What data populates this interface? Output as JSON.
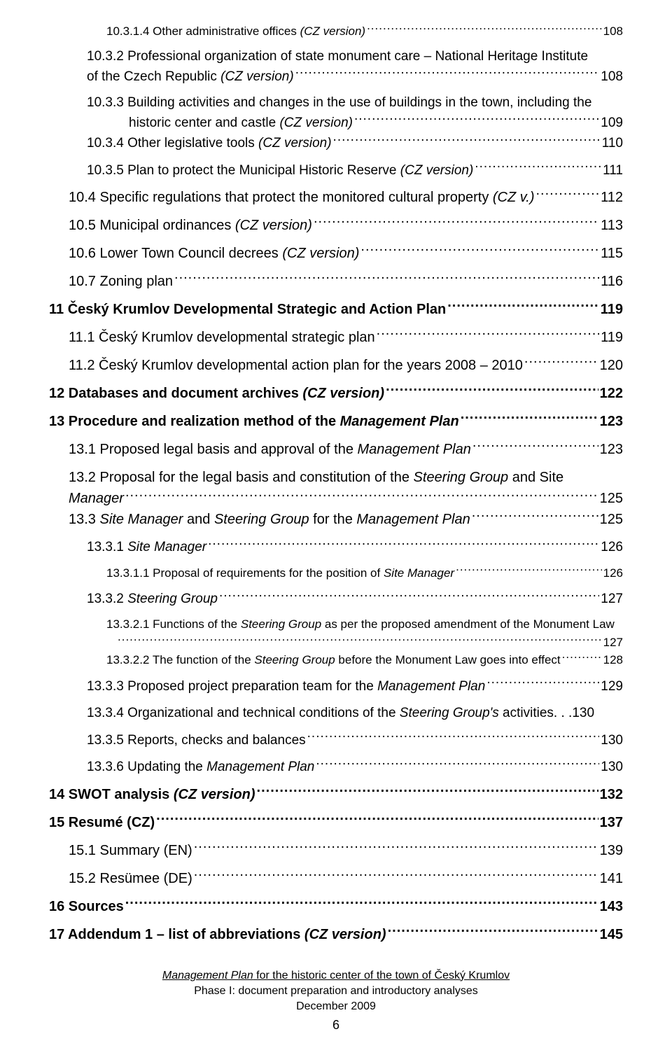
{
  "entries": [
    {
      "level": 3,
      "parts": [
        {
          "t": "10.3.1.4 Other administrative offices "
        },
        {
          "t": "(CZ version)",
          "i": true
        }
      ],
      "page": "108"
    },
    {
      "level": 2,
      "wrap": true,
      "line1": [
        {
          "t": "10.3.2 Professional organization of state monument care – National Heritage Institute"
        }
      ],
      "line2": [
        {
          "t": "of the Czech Republic "
        },
        {
          "t": "(CZ version)",
          "i": true
        }
      ],
      "page": "108"
    },
    {
      "level": 2,
      "wrap": true,
      "line1": [
        {
          "t": "10.3.3 Building activities and changes in the use of buildings in the town, including the"
        }
      ],
      "line2_indent": 60,
      "line2": [
        {
          "t": "historic center and castle "
        },
        {
          "t": "(CZ version)",
          "i": true
        }
      ],
      "page": "109"
    },
    {
      "level": 2,
      "parts": [
        {
          "t": "10.3.4 Other legislative tools "
        },
        {
          "t": "(CZ version)",
          "i": true
        }
      ],
      "page": "110"
    },
    {
      "level": 2,
      "parts": [
        {
          "t": "10.3.5 Plan to protect the Municipal Historic Reserve "
        },
        {
          "t": "(CZ version)",
          "i": true
        }
      ],
      "page": "111"
    },
    {
      "level": 1,
      "parts": [
        {
          "t": "10.4 Specific regulations that protect the monitored cultural property "
        },
        {
          "t": "(CZ v.)",
          "i": true
        }
      ],
      "page": "112"
    },
    {
      "level": 1,
      "parts": [
        {
          "t": "10.5 Municipal ordinances "
        },
        {
          "t": "(CZ version)",
          "i": true
        }
      ],
      "page": "113"
    },
    {
      "level": 1,
      "parts": [
        {
          "t": "10.6 Lower Town Council decrees "
        },
        {
          "t": "(CZ version)",
          "i": true
        }
      ],
      "page": "115"
    },
    {
      "level": 1,
      "parts": [
        {
          "t": "10.7 Zoning plan"
        }
      ],
      "page": "116"
    },
    {
      "level": 0,
      "parts": [
        {
          "t": "11 Český Krumlov Developmental Strategic and Action Plan"
        }
      ],
      "page": "119"
    },
    {
      "level": 1,
      "parts": [
        {
          "t": "11.1 Český Krumlov developmental strategic plan "
        }
      ],
      "page": "119"
    },
    {
      "level": 1,
      "parts": [
        {
          "t": "11.2 Český Krumlov developmental action plan for the years 2008 – 2010 "
        }
      ],
      "page": "120"
    },
    {
      "level": 0,
      "parts": [
        {
          "t": "12 Databases and document archives "
        },
        {
          "t": "(CZ version)",
          "i": true
        }
      ],
      "page": "122"
    },
    {
      "level": 0,
      "parts": [
        {
          "t": "13 Procedure and realization method of the "
        },
        {
          "t": "Management Plan",
          "i": true
        }
      ],
      "page": "123"
    },
    {
      "level": 1,
      "parts": [
        {
          "t": "13.1 Proposed legal basis and approval of the "
        },
        {
          "t": "Management Plan",
          "i": true
        }
      ],
      "page": "123"
    },
    {
      "level": 1,
      "wrap": true,
      "line1": [
        {
          "t": "13.2 Proposal for the legal basis and constitution of the "
        },
        {
          "t": "Steering Group",
          "i": true
        },
        {
          "t": " and Site"
        }
      ],
      "line2": [
        {
          "t": "Manager",
          "i": true
        }
      ],
      "page": "125"
    },
    {
      "level": 1,
      "parts": [
        {
          "t": "13.3 "
        },
        {
          "t": "Site Manager",
          "i": true
        },
        {
          "t": " and "
        },
        {
          "t": "Steering Group",
          "i": true
        },
        {
          "t": " for the "
        },
        {
          "t": "Management Plan",
          "i": true
        }
      ],
      "page": "125"
    },
    {
      "level": 2,
      "parts": [
        {
          "t": "13.3.1 "
        },
        {
          "t": "Site Manager ",
          "i": true
        }
      ],
      "page": "126"
    },
    {
      "level": 3,
      "parts": [
        {
          "t": "13.3.1.1 Proposal of requirements for the position of "
        },
        {
          "t": "Site Manager",
          "i": true
        }
      ],
      "page": "126"
    },
    {
      "level": 2,
      "parts": [
        {
          "t": "13.3.2 "
        },
        {
          "t": "Steering Group ",
          "i": true
        }
      ],
      "page": "127"
    },
    {
      "level": 3,
      "wrap": true,
      "line1": [
        {
          "t": "13.3.2.1 Functions of the "
        },
        {
          "t": "Steering Group",
          "i": true
        },
        {
          "t": " as per the proposed amendment of the Monument Law"
        }
      ],
      "line2_indent": 14,
      "line2": [
        {
          "t": ""
        }
      ],
      "page": "127"
    },
    {
      "level": 3,
      "parts": [
        {
          "t": "13.3.2.2 The function of the "
        },
        {
          "t": "Steering Group",
          "i": true
        },
        {
          "t": " before the Monument Law goes into effect "
        }
      ],
      "page": "128"
    },
    {
      "level": 2,
      "parts": [
        {
          "t": "13.3.3 Proposed project preparation team for the "
        },
        {
          "t": "Management Plan",
          "i": true
        }
      ],
      "page": "129"
    },
    {
      "level": 2,
      "parts": [
        {
          "t": "13.3.4  Organizational and technical conditions of the "
        },
        {
          "t": "Steering Group's",
          "i": true
        },
        {
          "t": " activities "
        }
      ],
      "page": "130",
      "spaced": true
    },
    {
      "level": 2,
      "parts": [
        {
          "t": "13.3.5 Reports, checks and balances"
        }
      ],
      "page": "130"
    },
    {
      "level": 2,
      "parts": [
        {
          "t": "13.3.6 Updating the "
        },
        {
          "t": "Management Plan",
          "i": true
        }
      ],
      "page": "130"
    },
    {
      "level": 0,
      "parts": [
        {
          "t": "14 SWOT analysis "
        },
        {
          "t": "(CZ version)",
          "i": true
        }
      ],
      "page": "132"
    },
    {
      "level": 0,
      "parts": [
        {
          "t": "15 Resumé (CZ)"
        }
      ],
      "page": "137"
    },
    {
      "level": 1,
      "parts": [
        {
          "t": "15.1 Summary (EN) "
        }
      ],
      "page": "139"
    },
    {
      "level": 1,
      "parts": [
        {
          "t": "15.2 Resümee (DE) "
        }
      ],
      "page": "141"
    },
    {
      "level": 0,
      "parts": [
        {
          "t": "16 Sources"
        }
      ],
      "page": "143"
    },
    {
      "level": 0,
      "parts": [
        {
          "t": "17 Addendum 1 – list of abbreviations "
        },
        {
          "t": "(CZ version)",
          "i": true
        }
      ],
      "page": "145"
    }
  ],
  "footer": {
    "line1_pre": "Management Plan",
    "line1_post": " for the historic center of the town of Český Krumlov",
    "line2": "Phase I: document preparation and introductory analyses",
    "line3": "December 2009",
    "pageNumber": "6"
  }
}
